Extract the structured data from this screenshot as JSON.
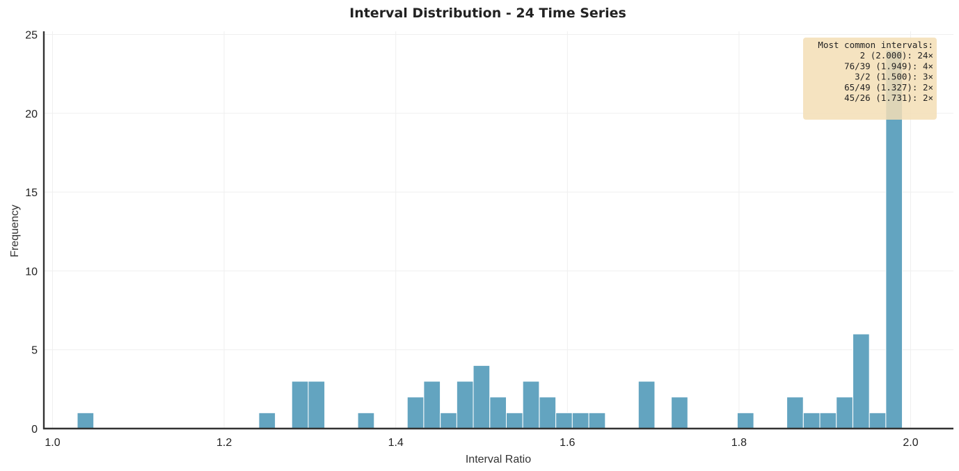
{
  "chart_data": {
    "type": "bar",
    "title": "Interval Distribution - 24 Time Series",
    "xlabel": "Interval Ratio",
    "ylabel": "Frequency",
    "xlim": [
      0.99,
      2.05
    ],
    "ylim": [
      0,
      25.2
    ],
    "xticks": [
      1.0,
      1.2,
      1.4,
      1.6,
      1.8,
      2.0
    ],
    "xtick_labels": [
      "1.0",
      "1.2",
      "1.4",
      "1.6",
      "1.8",
      "2.0"
    ],
    "yticks": [
      0,
      5,
      10,
      15,
      20,
      25
    ],
    "ytick_labels": [
      "0",
      "5",
      "10",
      "15",
      "20",
      "25"
    ],
    "grid": true,
    "bar_color": "#63a4c0",
    "bin_width": 0.0192,
    "bins": [
      {
        "x": 1.0384,
        "y": 1
      },
      {
        "x": 1.25,
        "y": 1
      },
      {
        "x": 1.2884,
        "y": 3
      },
      {
        "x": 1.3076,
        "y": 3
      },
      {
        "x": 1.3653,
        "y": 1
      },
      {
        "x": 1.423,
        "y": 2
      },
      {
        "x": 1.4422,
        "y": 3
      },
      {
        "x": 1.4615,
        "y": 1
      },
      {
        "x": 1.4807,
        "y": 3
      },
      {
        "x": 1.4999,
        "y": 4
      },
      {
        "x": 1.5192,
        "y": 2
      },
      {
        "x": 1.5384,
        "y": 1
      },
      {
        "x": 1.5576,
        "y": 3
      },
      {
        "x": 1.5769,
        "y": 2
      },
      {
        "x": 1.5961,
        "y": 1
      },
      {
        "x": 1.6153,
        "y": 1
      },
      {
        "x": 1.6346,
        "y": 1
      },
      {
        "x": 1.6923,
        "y": 3
      },
      {
        "x": 1.7307,
        "y": 2
      },
      {
        "x": 1.8076,
        "y": 1
      },
      {
        "x": 1.8653,
        "y": 2
      },
      {
        "x": 1.8846,
        "y": 1
      },
      {
        "x": 1.9038,
        "y": 1
      },
      {
        "x": 1.923,
        "y": 2
      },
      {
        "x": 1.9423,
        "y": 6
      },
      {
        "x": 1.9615,
        "y": 1
      },
      {
        "x": 1.9807,
        "y": 24
      }
    ],
    "annotation": {
      "lines": [
        "Most common intervals:",
        "2 (2.000): 24×",
        "76/39 (1.949): 4×",
        "3/2 (1.500): 3×",
        "65/49 (1.327): 2×",
        "45/26 (1.731): 2×"
      ],
      "position": "top-right",
      "box_color": "#f3deb5"
    }
  }
}
